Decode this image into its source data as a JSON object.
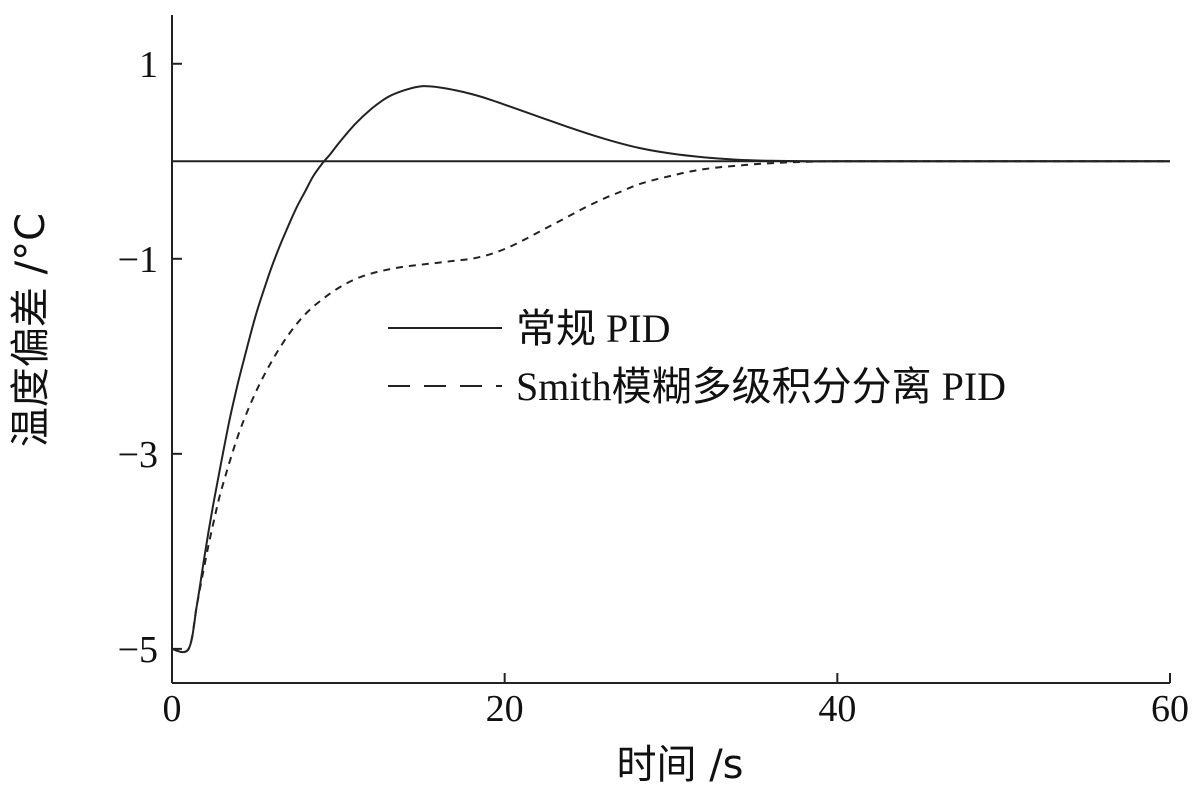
{
  "chart_data": {
    "type": "line",
    "title": "",
    "xlabel": "时间 /s",
    "ylabel": "温度偏差 /°C",
    "xlim": [
      0,
      60
    ],
    "ylim": [
      -5.35,
      1.5
    ],
    "x_ticks": [
      0,
      20,
      40,
      60
    ],
    "x_tick_labels": [
      "0",
      "20",
      "40",
      "60"
    ],
    "y_ticks": [
      1,
      -1,
      -3,
      -5
    ],
    "y_tick_labels": [
      "1",
      "−1",
      "−3",
      "−5"
    ],
    "grid": false,
    "legend_position": "center-right",
    "reference_line_y": 0,
    "series": [
      {
        "name": "常规 PID",
        "style": "solid",
        "color": "#222222",
        "x": [
          0,
          1,
          1.5,
          2,
          2.5,
          3,
          3.5,
          4,
          4.5,
          5,
          5.5,
          6,
          6.5,
          7,
          7.5,
          8,
          8.5,
          9,
          9.5,
          10,
          11,
          12,
          13,
          14,
          15,
          16,
          17,
          18,
          19,
          20,
          22,
          24,
          26,
          28,
          30,
          32,
          34,
          36,
          38,
          40,
          45,
          50,
          55,
          60
        ],
        "y": [
          -5,
          -5,
          -4.55,
          -4.0,
          -3.5,
          -3.05,
          -2.62,
          -2.25,
          -1.92,
          -1.6,
          -1.33,
          -1.08,
          -0.86,
          -0.66,
          -0.47,
          -0.31,
          -0.15,
          -0.03,
          0.07,
          0.18,
          0.38,
          0.54,
          0.66,
          0.73,
          0.77,
          0.76,
          0.73,
          0.69,
          0.64,
          0.58,
          0.46,
          0.34,
          0.23,
          0.14,
          0.08,
          0.04,
          0.015,
          0.005,
          0.0,
          0.0,
          0.0,
          0.0,
          0.0,
          0.0
        ]
      },
      {
        "name": "Smith模糊多级积分分离 PID",
        "style": "dashed",
        "color": "#222222",
        "x": [
          0,
          1,
          1.5,
          2,
          2.5,
          3,
          4,
          5,
          6,
          7,
          8,
          9,
          10,
          11,
          12,
          13,
          14,
          15,
          16,
          17,
          18,
          19,
          20,
          21,
          22,
          23,
          24,
          25,
          26,
          27,
          28,
          29,
          30,
          31,
          32,
          33,
          34,
          35,
          36,
          37,
          38,
          40,
          45,
          50,
          55,
          60
        ],
        "y": [
          -5,
          -5,
          -4.55,
          -4.1,
          -3.7,
          -3.35,
          -2.8,
          -2.38,
          -2.05,
          -1.78,
          -1.57,
          -1.42,
          -1.3,
          -1.21,
          -1.15,
          -1.11,
          -1.08,
          -1.06,
          -1.04,
          -1.02,
          -1.0,
          -0.96,
          -0.9,
          -0.82,
          -0.73,
          -0.64,
          -0.55,
          -0.46,
          -0.38,
          -0.31,
          -0.24,
          -0.19,
          -0.15,
          -0.11,
          -0.08,
          -0.06,
          -0.045,
          -0.03,
          -0.02,
          -0.012,
          -0.006,
          0.0,
          0.0,
          0.0,
          0.0,
          0.0
        ]
      }
    ]
  }
}
